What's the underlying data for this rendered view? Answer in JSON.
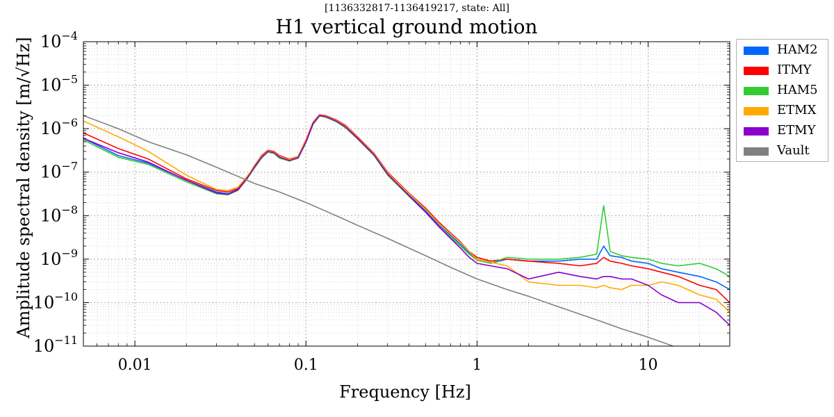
{
  "chart_data": {
    "type": "line",
    "subtitle": "[1136332817-1136419217, state: All]",
    "title": "H1 vertical ground motion",
    "xlabel": "Frequency [Hz]",
    "ylabel": "Amplitude spectral density [m/√Hz]",
    "xscale": "log",
    "yscale": "log",
    "xlim": [
      0.005,
      30
    ],
    "ylim": [
      1e-11,
      0.0001
    ],
    "xticks": [
      "0.01",
      "0.1",
      "1",
      "10"
    ],
    "yticks": [
      "10^-11",
      "10^-10",
      "10^-9",
      "10^-8",
      "10^-7",
      "10^-6",
      "10^-5",
      "10^-4"
    ],
    "grid": true,
    "legend_position": "outside-right",
    "series": [
      {
        "name": "HAM2",
        "color": "#0066ff",
        "x": [
          0.005,
          0.008,
          0.012,
          0.02,
          0.03,
          0.035,
          0.04,
          0.045,
          0.05,
          0.055,
          0.06,
          0.065,
          0.07,
          0.08,
          0.09,
          0.1,
          0.11,
          0.12,
          0.13,
          0.15,
          0.17,
          0.2,
          0.25,
          0.3,
          0.4,
          0.5,
          0.6,
          0.7,
          0.8,
          0.9,
          1.0,
          1.2,
          1.5,
          2,
          3,
          4,
          5,
          5.5,
          6,
          7,
          8,
          10,
          12,
          15,
          20,
          25,
          30
        ],
        "y": [
          6e-07,
          2.4e-07,
          1.6e-07,
          6.5e-08,
          3.5e-08,
          3.2e-08,
          4e-08,
          7e-08,
          1.3e-07,
          2.2e-07,
          3e-07,
          2.8e-07,
          2.2e-07,
          1.9e-07,
          2.2e-07,
          5e-07,
          1.3e-06,
          2e-06,
          1.9e-06,
          1.5e-06,
          1.1e-06,
          6e-07,
          2.5e-07,
          9e-08,
          3e-08,
          1.3e-08,
          6e-09,
          3.5e-09,
          2.2e-09,
          1.4e-09,
          1e-09,
          8e-10,
          1e-09,
          9e-10,
          9e-10,
          1e-09,
          1e-09,
          2e-09,
          1.2e-09,
          1.1e-09,
          9e-10,
          8e-10,
          6e-10,
          5e-10,
          4e-10,
          3e-10,
          2e-10
        ]
      },
      {
        "name": "ITMY",
        "color": "#ff0000",
        "x": [
          0.005,
          0.008,
          0.012,
          0.02,
          0.03,
          0.035,
          0.04,
          0.045,
          0.05,
          0.055,
          0.06,
          0.065,
          0.07,
          0.08,
          0.09,
          0.1,
          0.11,
          0.12,
          0.13,
          0.15,
          0.17,
          0.2,
          0.25,
          0.3,
          0.4,
          0.5,
          0.6,
          0.7,
          0.8,
          0.9,
          1.0,
          1.2,
          1.5,
          2,
          3,
          4,
          5,
          5.5,
          6,
          7,
          8,
          10,
          12,
          15,
          20,
          25,
          30
        ],
        "y": [
          8e-07,
          3.5e-07,
          2e-07,
          7e-08,
          3.8e-08,
          3.5e-08,
          4.2e-08,
          7.5e-08,
          1.4e-07,
          2.4e-07,
          3.2e-07,
          3e-07,
          2.4e-07,
          2e-07,
          2.3e-07,
          5.5e-07,
          1.4e-06,
          2.1e-06,
          2e-06,
          1.6e-06,
          1.2e-06,
          6.5e-07,
          2.7e-07,
          1e-07,
          3.3e-08,
          1.5e-08,
          7e-09,
          4e-09,
          2.5e-09,
          1.5e-09,
          1.1e-09,
          9e-10,
          1e-09,
          9e-10,
          8e-10,
          7e-10,
          8e-10,
          1.1e-09,
          9e-10,
          8e-10,
          7e-10,
          6e-10,
          5e-10,
          4e-10,
          2.5e-10,
          2e-10,
          1e-10
        ]
      },
      {
        "name": "HAM5",
        "color": "#33cc33",
        "x": [
          0.005,
          0.008,
          0.012,
          0.02,
          0.03,
          0.035,
          0.04,
          0.045,
          0.05,
          0.055,
          0.06,
          0.065,
          0.07,
          0.08,
          0.09,
          0.1,
          0.11,
          0.12,
          0.13,
          0.15,
          0.17,
          0.2,
          0.25,
          0.3,
          0.4,
          0.5,
          0.6,
          0.7,
          0.8,
          0.9,
          1.0,
          1.2,
          1.5,
          2,
          3,
          4,
          5,
          5.5,
          6,
          7,
          8,
          10,
          12,
          15,
          20,
          25,
          30
        ],
        "y": [
          5.5e-07,
          2.2e-07,
          1.5e-07,
          6e-08,
          3.2e-08,
          3e-08,
          3.8e-08,
          6.8e-08,
          1.25e-07,
          2.1e-07,
          2.9e-07,
          2.7e-07,
          2.1e-07,
          1.8e-07,
          2.1e-07,
          4.8e-07,
          1.25e-06,
          1.95e-06,
          1.85e-06,
          1.45e-06,
          1.05e-06,
          5.8e-07,
          2.4e-07,
          8.5e-08,
          2.8e-08,
          1.2e-08,
          5.5e-09,
          3.2e-09,
          2e-09,
          1.3e-09,
          9.5e-10,
          8e-10,
          1.1e-09,
          1e-09,
          1e-09,
          1.1e-09,
          1.3e-09,
          1.7e-08,
          1.5e-09,
          1.2e-09,
          1.1e-09,
          1e-09,
          8e-10,
          7e-10,
          8e-10,
          6e-10,
          4e-10
        ]
      },
      {
        "name": "ETMX",
        "color": "#ffaa00",
        "x": [
          0.005,
          0.008,
          0.012,
          0.02,
          0.03,
          0.035,
          0.04,
          0.045,
          0.05,
          0.055,
          0.06,
          0.065,
          0.07,
          0.08,
          0.09,
          0.1,
          0.11,
          0.12,
          0.13,
          0.15,
          0.17,
          0.2,
          0.25,
          0.3,
          0.4,
          0.5,
          0.6,
          0.7,
          0.8,
          0.9,
          1.0,
          1.2,
          1.5,
          2,
          3,
          4,
          5,
          5.5,
          6,
          7,
          8,
          10,
          12,
          15,
          20,
          25,
          30
        ],
        "y": [
          1.5e-06,
          6.5e-07,
          3e-07,
          8.5e-08,
          4e-08,
          3.8e-08,
          4.5e-08,
          7.8e-08,
          1.35e-07,
          2.3e-07,
          3.1e-07,
          2.9e-07,
          2.3e-07,
          1.95e-07,
          2.25e-07,
          5.2e-07,
          1.35e-06,
          2.05e-06,
          1.95e-06,
          1.55e-06,
          1.15e-06,
          6.2e-07,
          2.6e-07,
          9.5e-08,
          3.2e-08,
          1.4e-08,
          6.5e-09,
          3.8e-09,
          2.4e-09,
          1.5e-09,
          1e-09,
          8.5e-10,
          7e-10,
          3e-10,
          2.5e-10,
          2.5e-10,
          2.2e-10,
          2.5e-10,
          2.2e-10,
          2e-10,
          2.5e-10,
          2.5e-10,
          3e-10,
          2.5e-10,
          1.5e-10,
          1.2e-10,
          6e-11
        ]
      },
      {
        "name": "ETMY",
        "color": "#8800cc",
        "x": [
          0.005,
          0.008,
          0.012,
          0.02,
          0.03,
          0.035,
          0.04,
          0.045,
          0.05,
          0.055,
          0.06,
          0.065,
          0.07,
          0.08,
          0.09,
          0.1,
          0.11,
          0.12,
          0.13,
          0.15,
          0.17,
          0.2,
          0.25,
          0.3,
          0.4,
          0.5,
          0.6,
          0.7,
          0.8,
          0.9,
          1.0,
          1.2,
          1.5,
          2,
          3,
          4,
          5,
          5.5,
          6,
          7,
          8,
          10,
          12,
          15,
          20,
          25,
          30
        ],
        "y": [
          6e-07,
          2.8e-07,
          1.7e-07,
          6.5e-08,
          3.3e-08,
          3.1e-08,
          3.9e-08,
          7e-08,
          1.3e-07,
          2.2e-07,
          3e-07,
          2.8e-07,
          2.2e-07,
          1.85e-07,
          2.15e-07,
          4.9e-07,
          1.3e-06,
          2e-06,
          1.9e-06,
          1.5e-06,
          1.1e-06,
          6e-07,
          2.5e-07,
          9e-08,
          2.9e-08,
          1.2e-08,
          5.5e-09,
          3e-09,
          1.8e-09,
          1.1e-09,
          8e-10,
          7e-10,
          6e-10,
          3.5e-10,
          5e-10,
          4e-10,
          3.5e-10,
          4e-10,
          4e-10,
          3.5e-10,
          3.5e-10,
          2.5e-10,
          1.5e-10,
          1e-10,
          1e-10,
          6e-11,
          3e-11
        ]
      },
      {
        "name": "Vault",
        "color": "#808080",
        "x": [
          0.005,
          0.008,
          0.012,
          0.02,
          0.03,
          0.04,
          0.05,
          0.07,
          0.1,
          0.15,
          0.2,
          0.3,
          0.5,
          0.7,
          1,
          1.5,
          2,
          3,
          5,
          7,
          10,
          14
        ],
        "y": [
          2e-06,
          1e-06,
          5e-07,
          2.5e-07,
          1.3e-07,
          8e-08,
          5.5e-08,
          3.5e-08,
          2e-08,
          1e-08,
          6e-09,
          3e-09,
          1.2e-09,
          6.5e-10,
          3.5e-10,
          2e-10,
          1.4e-10,
          8e-11,
          4e-11,
          2.5e-11,
          1.6e-11,
          1e-11
        ]
      }
    ]
  }
}
